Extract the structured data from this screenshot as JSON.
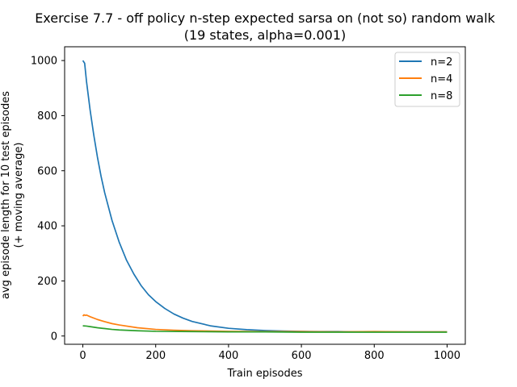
{
  "chart_data": {
    "type": "line",
    "title_line1": "Exercise 7.7 - off policy n-step expected sarsa on (not so) random walk",
    "title_line2": "(19 states, alpha=0.001)",
    "xlabel": "Train episodes",
    "ylabel_line1": "avg episode length for 10 test episodes",
    "ylabel_line2": "(+ moving average)",
    "xlim": [
      -50,
      1050
    ],
    "ylim": [
      -30,
      1050
    ],
    "xticks": [
      0,
      200,
      400,
      600,
      800,
      1000
    ],
    "yticks": [
      0,
      200,
      400,
      600,
      800,
      1000
    ],
    "legend_position": "top-right",
    "series": [
      {
        "name": "n=2",
        "color": "#1f77b4",
        "x": [
          0,
          5,
          10,
          20,
          30,
          40,
          50,
          60,
          80,
          100,
          120,
          140,
          160,
          180,
          200,
          225,
          250,
          275,
          300,
          350,
          400,
          450,
          500,
          550,
          600,
          650,
          700,
          750,
          800,
          850,
          900,
          950,
          1000
        ],
        "y": [
          1000,
          990,
          925,
          820,
          730,
          650,
          580,
          520,
          420,
          340,
          275,
          225,
          183,
          150,
          125,
          100,
          80,
          65,
          53,
          37,
          28,
          23,
          20,
          18,
          17,
          16,
          16,
          15,
          15,
          15,
          15,
          15,
          15
        ]
      },
      {
        "name": "n=4",
        "color": "#ff7f0e",
        "x": [
          0,
          3,
          6,
          10,
          20,
          40,
          60,
          80,
          100,
          150,
          200,
          250,
          300,
          400,
          500,
          600,
          700,
          800,
          900,
          1000
        ],
        "y": [
          72,
          77,
          75,
          76,
          70,
          60,
          52,
          45,
          40,
          30,
          24,
          21,
          19,
          17,
          16,
          16,
          15,
          16,
          15,
          15
        ]
      },
      {
        "name": "n=8",
        "color": "#2ca02c",
        "x": [
          0,
          10,
          20,
          40,
          60,
          80,
          100,
          150,
          200,
          300,
          400,
          500,
          600,
          700,
          800,
          900,
          1000
        ],
        "y": [
          37,
          36,
          34,
          30,
          27,
          24,
          22,
          19,
          17,
          16,
          15,
          15,
          14,
          14,
          14,
          14,
          14
        ]
      }
    ]
  }
}
